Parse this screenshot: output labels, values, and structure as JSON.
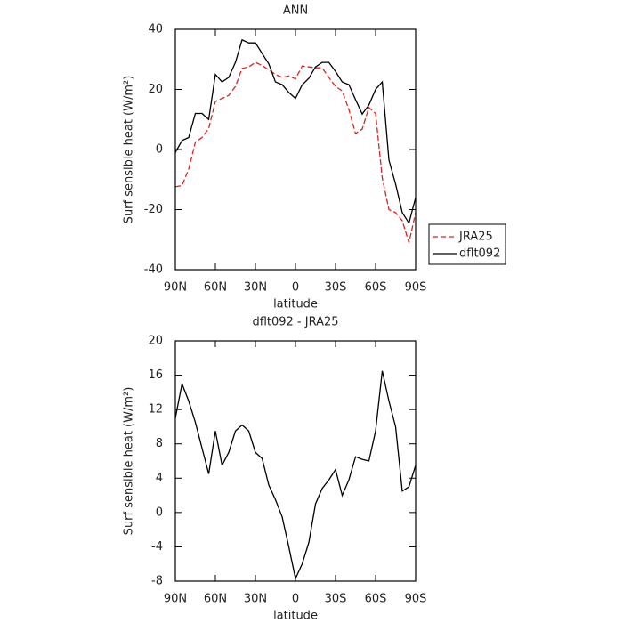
{
  "chart_data": [
    {
      "type": "line",
      "title": "ANN",
      "xlabel": "latitude",
      "ylabel": "Surf sensible heat (W/m²)",
      "x": [
        90,
        85,
        80,
        75,
        70,
        65,
        60,
        55,
        50,
        45,
        40,
        35,
        30,
        25,
        20,
        15,
        10,
        5,
        0,
        -5,
        -10,
        -15,
        -20,
        -25,
        -30,
        -35,
        -40,
        -45,
        -50,
        -55,
        -60,
        -65,
        -70,
        -75,
        -80,
        -85,
        -90
      ],
      "series": [
        {
          "name": "JRA25",
          "color": "#e02020",
          "dashed": true,
          "values": [
            -12.4,
            -12,
            -6.5,
            2.4,
            4,
            7,
            16,
            17,
            18,
            21,
            27,
            27.5,
            29,
            28,
            26.5,
            25,
            24,
            24.5,
            23.5,
            27.8,
            27.5,
            27.2,
            27.2,
            24,
            21,
            19.5,
            13.3,
            5.3,
            6.8,
            14,
            12,
            -9.5,
            -20,
            -21,
            -23.7,
            -31,
            -21
          ]
        },
        {
          "name": "dflt092",
          "color": "#000000",
          "dashed": false,
          "values": [
            -1,
            3,
            4,
            12,
            12,
            10,
            25,
            22.5,
            24,
            29,
            36.5,
            35.5,
            35.5,
            32,
            28.5,
            22.5,
            21.6,
            19,
            17,
            21.5,
            23.7,
            27.5,
            29,
            29,
            26,
            22.5,
            21.6,
            16.6,
            11.8,
            14.8,
            20,
            22.5,
            -3.5,
            -11.5,
            -21,
            -24.5,
            -16
          ]
        }
      ],
      "xlim": [
        90,
        -90
      ],
      "xticks": [
        {
          "value": 90,
          "label": "90N"
        },
        {
          "value": 60,
          "label": "60N"
        },
        {
          "value": 30,
          "label": "30N"
        },
        0,
        {
          "value": -30,
          "label": "30S"
        },
        {
          "value": -60,
          "label": "60S"
        },
        {
          "value": -90,
          "label": "90S"
        }
      ],
      "ylim": [
        -40,
        40
      ],
      "yticks": [
        -40,
        -20,
        0,
        20,
        40
      ],
      "legend": "right"
    },
    {
      "type": "line",
      "title": "dflt092 - JRA25",
      "xlabel": "latitude",
      "ylabel": "Surf sensible heat (W/m²)",
      "x": [
        90,
        85,
        80,
        75,
        70,
        65,
        60,
        55,
        50,
        45,
        40,
        35,
        30,
        25,
        20,
        15,
        10,
        5,
        0,
        -5,
        -10,
        -15,
        -20,
        -25,
        -30,
        -35,
        -40,
        -45,
        -50,
        -55,
        -60,
        -65,
        -70,
        -75,
        -80,
        -85,
        -90
      ],
      "series": [
        {
          "color": "#000000",
          "dashed": false,
          "values": [
            11,
            15,
            13,
            10.5,
            7.5,
            4.5,
            9.5,
            5.5,
            7,
            9.5,
            10.2,
            9.5,
            7,
            6.3,
            3.2,
            1.5,
            -0.5,
            -4,
            -7.7,
            -6,
            -3.5,
            1,
            2.8,
            3.8,
            5,
            2,
            3.8,
            6.5,
            6.2,
            6,
            9.5,
            16.5,
            13,
            10,
            2.5,
            3,
            5.5
          ]
        }
      ],
      "xlim": [
        90,
        -90
      ],
      "xticks": [
        {
          "value": 90,
          "label": "90N"
        },
        {
          "value": 60,
          "label": "60N"
        },
        {
          "value": 30,
          "label": "30N"
        },
        0,
        {
          "value": -30,
          "label": "30S"
        },
        {
          "value": -60,
          "label": "60S"
        },
        {
          "value": -90,
          "label": "90S"
        }
      ],
      "ylim": [
        -8,
        20
      ],
      "yticks": [
        -8,
        -4,
        0,
        4,
        8,
        12,
        16,
        20
      ]
    }
  ]
}
